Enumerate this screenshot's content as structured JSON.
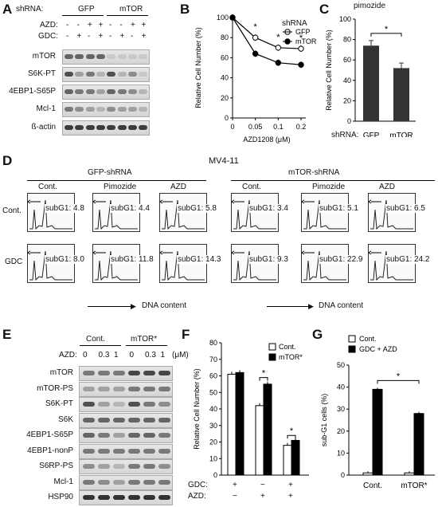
{
  "panels": {
    "A": "A",
    "B": "B",
    "C": "C",
    "D": "D",
    "E": "E",
    "F": "F",
    "G": "G"
  },
  "panelA": {
    "shrna_label": "shRNA:",
    "groups": [
      "GFP",
      "mTOR"
    ],
    "azd_label": "AZD:",
    "azd_signs": [
      "-",
      "-",
      "+",
      "+",
      "-",
      "-",
      "+",
      "+"
    ],
    "gdc_label": "GDC:",
    "gdc_signs": [
      "-",
      "+",
      "-",
      "+",
      "-",
      "+",
      "-",
      "+"
    ],
    "rows": [
      "mTOR",
      "S6K-PT",
      "4EBP1-S65P",
      "Mcl-1",
      "ß-actin"
    ]
  },
  "panelB": {
    "legend_title": "shRNA"
  },
  "panelC": {
    "title": "pimozide",
    "shrna_label": "shRNA:"
  },
  "panelD": {
    "title": "MV4-11",
    "groups": [
      "GFP-shRNA",
      "mTOR-shRNA"
    ],
    "col_labels": [
      "Cont.",
      "Pimozide",
      "AZD",
      "Cont.",
      "Pimozide",
      "AZD"
    ],
    "row_labels": [
      "Cont.",
      "GDC"
    ],
    "subg1": [
      [
        "subG1: 4.8",
        "subG1: 4.4",
        "subG1: 5.8",
        "subG1: 3.4",
        "subG1: 5.1",
        "subG1: 6.5"
      ],
      [
        "subG1: 8.0",
        "subG1: 11.8",
        "subG1: 14.3",
        "subG1: 9.3",
        "subG1: 22.9",
        "subG1: 24.2"
      ]
    ],
    "dna_label": "DNA content"
  },
  "panelE": {
    "groups": [
      "Cont.",
      "mTOR*"
    ],
    "azd_label": "AZD:",
    "azd_values": [
      "0",
      "0.3",
      "1",
      "0",
      "0.3",
      "1"
    ],
    "unit": "(μM)",
    "rows": [
      "mTOR",
      "mTOR-PS",
      "S6K-PT",
      "S6K",
      "4EBP1-S65P",
      "4EBP1-nonP",
      "S6RP-PS",
      "Mcl-1",
      "HSP90"
    ]
  },
  "panelF": {
    "gdc_label": "GDC:",
    "azd_label": "AZD:",
    "gdc_signs": [
      "+",
      "−",
      "+"
    ],
    "azd_signs": [
      "−",
      "+",
      "+"
    ]
  },
  "chart_data": [
    {
      "id": "B",
      "type": "line",
      "title": "",
      "xlabel": "AZD1208 (μM)",
      "ylabel": "Relative Cell Number (%)",
      "x": [
        0,
        0.05,
        0.1,
        0.2
      ],
      "xticks": [
        "0",
        "0.05",
        "0.1",
        "0.2"
      ],
      "ylim": [
        0,
        100
      ],
      "yticks": [
        "0",
        "20",
        "40",
        "60",
        "80",
        "100"
      ],
      "legend": "top-right",
      "series": [
        {
          "name": "GFP",
          "values": [
            100,
            80,
            70,
            69
          ],
          "marker": "open"
        },
        {
          "name": "mTOR",
          "values": [
            100,
            64,
            55,
            53
          ],
          "marker": "filled"
        }
      ],
      "annotations": [
        "*",
        "*",
        "*"
      ]
    },
    {
      "id": "C",
      "type": "bar",
      "title": "pimozide",
      "xlabel": "",
      "ylabel": "Relative Cell Number (%)",
      "categories": [
        "GFP",
        "mTOR"
      ],
      "values": [
        74,
        52
      ],
      "errors": [
        5,
        5
      ],
      "ylim": [
        0,
        100
      ],
      "yticks": [
        "0",
        "20",
        "40",
        "60",
        "80",
        "100"
      ],
      "annotations": [
        "*"
      ]
    },
    {
      "id": "F",
      "type": "bar",
      "xlabel": "",
      "ylabel": "Relative Cell Number (%)",
      "ylim": [
        0,
        80
      ],
      "yticks": [
        "0",
        "10",
        "20",
        "30",
        "40",
        "50",
        "60",
        "70",
        "80"
      ],
      "series": [
        {
          "name": "Cont.",
          "values": [
            61,
            42,
            18
          ],
          "color": "#ffffff"
        },
        {
          "name": "mTOR*",
          "values": [
            62,
            55,
            21
          ],
          "color": "#000000"
        }
      ],
      "legend": "top-right",
      "annotations": [
        "*",
        "*"
      ]
    },
    {
      "id": "G",
      "type": "bar",
      "xlabel": "",
      "ylabel": "sub-G1 cells (%)",
      "ylim": [
        0,
        50
      ],
      "yticks": [
        "0",
        "10",
        "20",
        "30",
        "40",
        "50"
      ],
      "categories": [
        "Cont.",
        "mTOR*"
      ],
      "series": [
        {
          "name": "Cont.",
          "values": [
            1,
            1
          ],
          "color": "#ffffff"
        },
        {
          "name": "GDC + AZD",
          "values": [
            39,
            28
          ],
          "color": "#000000"
        }
      ],
      "legend": "top-left",
      "annotations": [
        "*"
      ]
    }
  ]
}
